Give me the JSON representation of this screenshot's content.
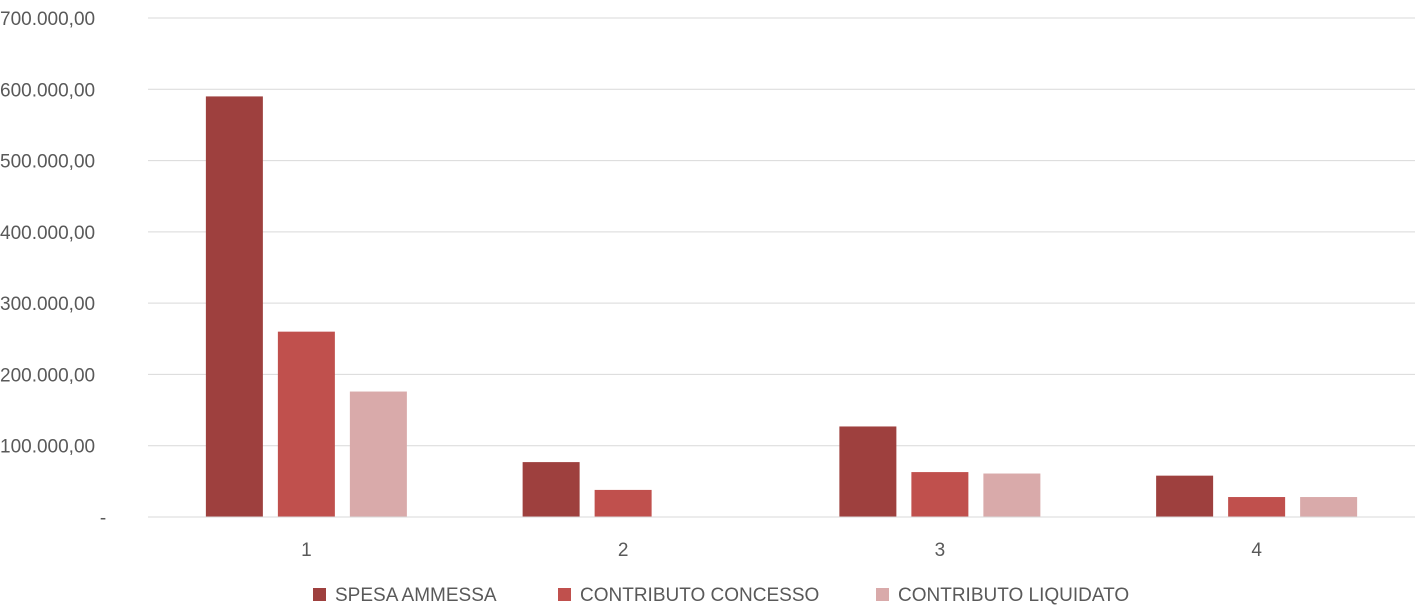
{
  "chart_data": {
    "type": "bar",
    "categories": [
      "1",
      "2",
      "3",
      "4"
    ],
    "series": [
      {
        "name": "SPESA AMMESSA",
        "color": "#9e403e",
        "values": [
          590000,
          77000,
          127000,
          58000
        ]
      },
      {
        "name": "CONTRIBUTO CONCESSO",
        "color": "#c0504d",
        "values": [
          260000,
          38000,
          63000,
          28000
        ]
      },
      {
        "name": "CONTRIBUTO LIQUIDATO",
        "color": "#d9aaaa",
        "values": [
          176000,
          0,
          61000,
          28000
        ]
      }
    ],
    "ylim": [
      0,
      700000
    ],
    "yticks": [
      {
        "value": 0,
        "label": "-"
      },
      {
        "value": 100000,
        "label": "100.000,00"
      },
      {
        "value": 200000,
        "label": "200.000,00"
      },
      {
        "value": 300000,
        "label": "300.000,00"
      },
      {
        "value": 400000,
        "label": "400.000,00"
      },
      {
        "value": 500000,
        "label": "500.000,00"
      },
      {
        "value": 600000,
        "label": "600.000,00"
      },
      {
        "value": 700000,
        "label": "700.000,00"
      }
    ],
    "grid": true,
    "legend_position": "bottom"
  }
}
